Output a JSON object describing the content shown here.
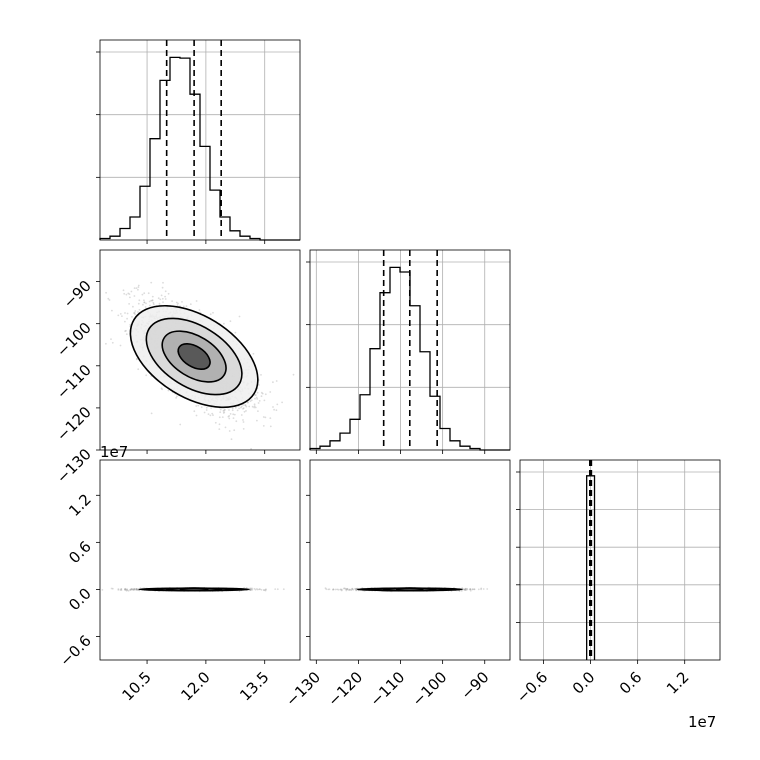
{
  "chart_data": {
    "type": "corner",
    "parameter_count": 3,
    "grid": true,
    "panels": [
      {
        "id": "hist_p0",
        "type": "histogram",
        "x_range": [
          9.3,
          14.4
        ],
        "y_max": 245,
        "bins": {
          "x0": 9.3,
          "width": 0.255,
          "counts": [
            2,
            5,
            15,
            30,
            70,
            132,
            208,
            238,
            237,
            190,
            122,
            65,
            30,
            12,
            5,
            2,
            0,
            0,
            0,
            0
          ]
        },
        "quantile_lines": [
          11.0,
          11.7,
          12.39
        ]
      },
      {
        "id": "hist_p1",
        "type": "histogram",
        "x_range": [
          -131.5,
          -84.0
        ],
        "y_max": 245,
        "bins": {
          "x0": -131.5,
          "width": 2.375,
          "counts": [
            2,
            5,
            12,
            22,
            40,
            72,
            132,
            205,
            238,
            232,
            188,
            128,
            70,
            28,
            12,
            5,
            2,
            0,
            0,
            0
          ]
        },
        "quantile_lines": [
          -114.0,
          -107.8,
          -101.3
        ]
      },
      {
        "id": "hist_p2",
        "type": "histogram",
        "x_range": [
          -0.9,
          1.65
        ],
        "y_max": 245,
        "bins": {
          "x0": -0.05,
          "width": 0.1,
          "counts": [
            240
          ]
        },
        "quantile_lines": [
          -0.01,
          0.0,
          0.01
        ]
      },
      {
        "id": "scatter_p0_p1",
        "type": "scatter_density",
        "x_range": [
          9.3,
          14.4
        ],
        "y_range": [
          -130,
          -82.5
        ],
        "center": [
          11.7,
          -107.8
        ],
        "sigma": [
          0.7,
          6.2
        ],
        "correlation": -0.65
      },
      {
        "id": "scatter_p0_p2",
        "type": "scatter_density",
        "x_range": [
          9.3,
          14.4
        ],
        "y_range": [
          -0.9,
          1.65
        ],
        "center": [
          11.7,
          0.0
        ],
        "sigma": [
          0.7,
          0.007
        ],
        "correlation": 0.0
      },
      {
        "id": "scatter_p1_p2",
        "type": "scatter_density",
        "x_range": [
          -131.5,
          -84.0
        ],
        "y_range": [
          -0.9,
          1.65
        ],
        "center": [
          -107.8,
          0.0
        ],
        "sigma": [
          6.2,
          0.007
        ],
        "correlation": 0.0
      }
    ],
    "axes": {
      "p0_ticks": [
        "10.5",
        "12.0",
        "13.5"
      ],
      "p0_tick_values": [
        10.5,
        12.0,
        13.5
      ],
      "p1_ticks": [
        "−130",
        "−120",
        "−110",
        "−100",
        "−90"
      ],
      "p1_tick_values": [
        -130,
        -120,
        -110,
        -100,
        -90
      ],
      "p1_row_ticks": [
        "−90",
        "−100",
        "−110",
        "−120",
        "−130"
      ],
      "p1_row_tick_values": [
        -90,
        -100,
        -110,
        -120,
        -130
      ],
      "p2_ticks": [
        "−0.6",
        "0.0",
        "0.6",
        "1.2"
      ],
      "p2_tick_values": [
        -0.6,
        0.0,
        0.6,
        1.2
      ],
      "p2_row_ticks": [
        "1.2",
        "0.6",
        "0.0",
        "−0.6"
      ],
      "p2_row_tick_values": [
        1.2,
        0.6,
        0.0,
        -0.6
      ],
      "p2_offset": "1e7",
      "p2_row_offset": "1e7"
    },
    "colors": {
      "line": "#000000",
      "grid": "#b0b0b0",
      "points": "#9a9a9a"
    }
  }
}
